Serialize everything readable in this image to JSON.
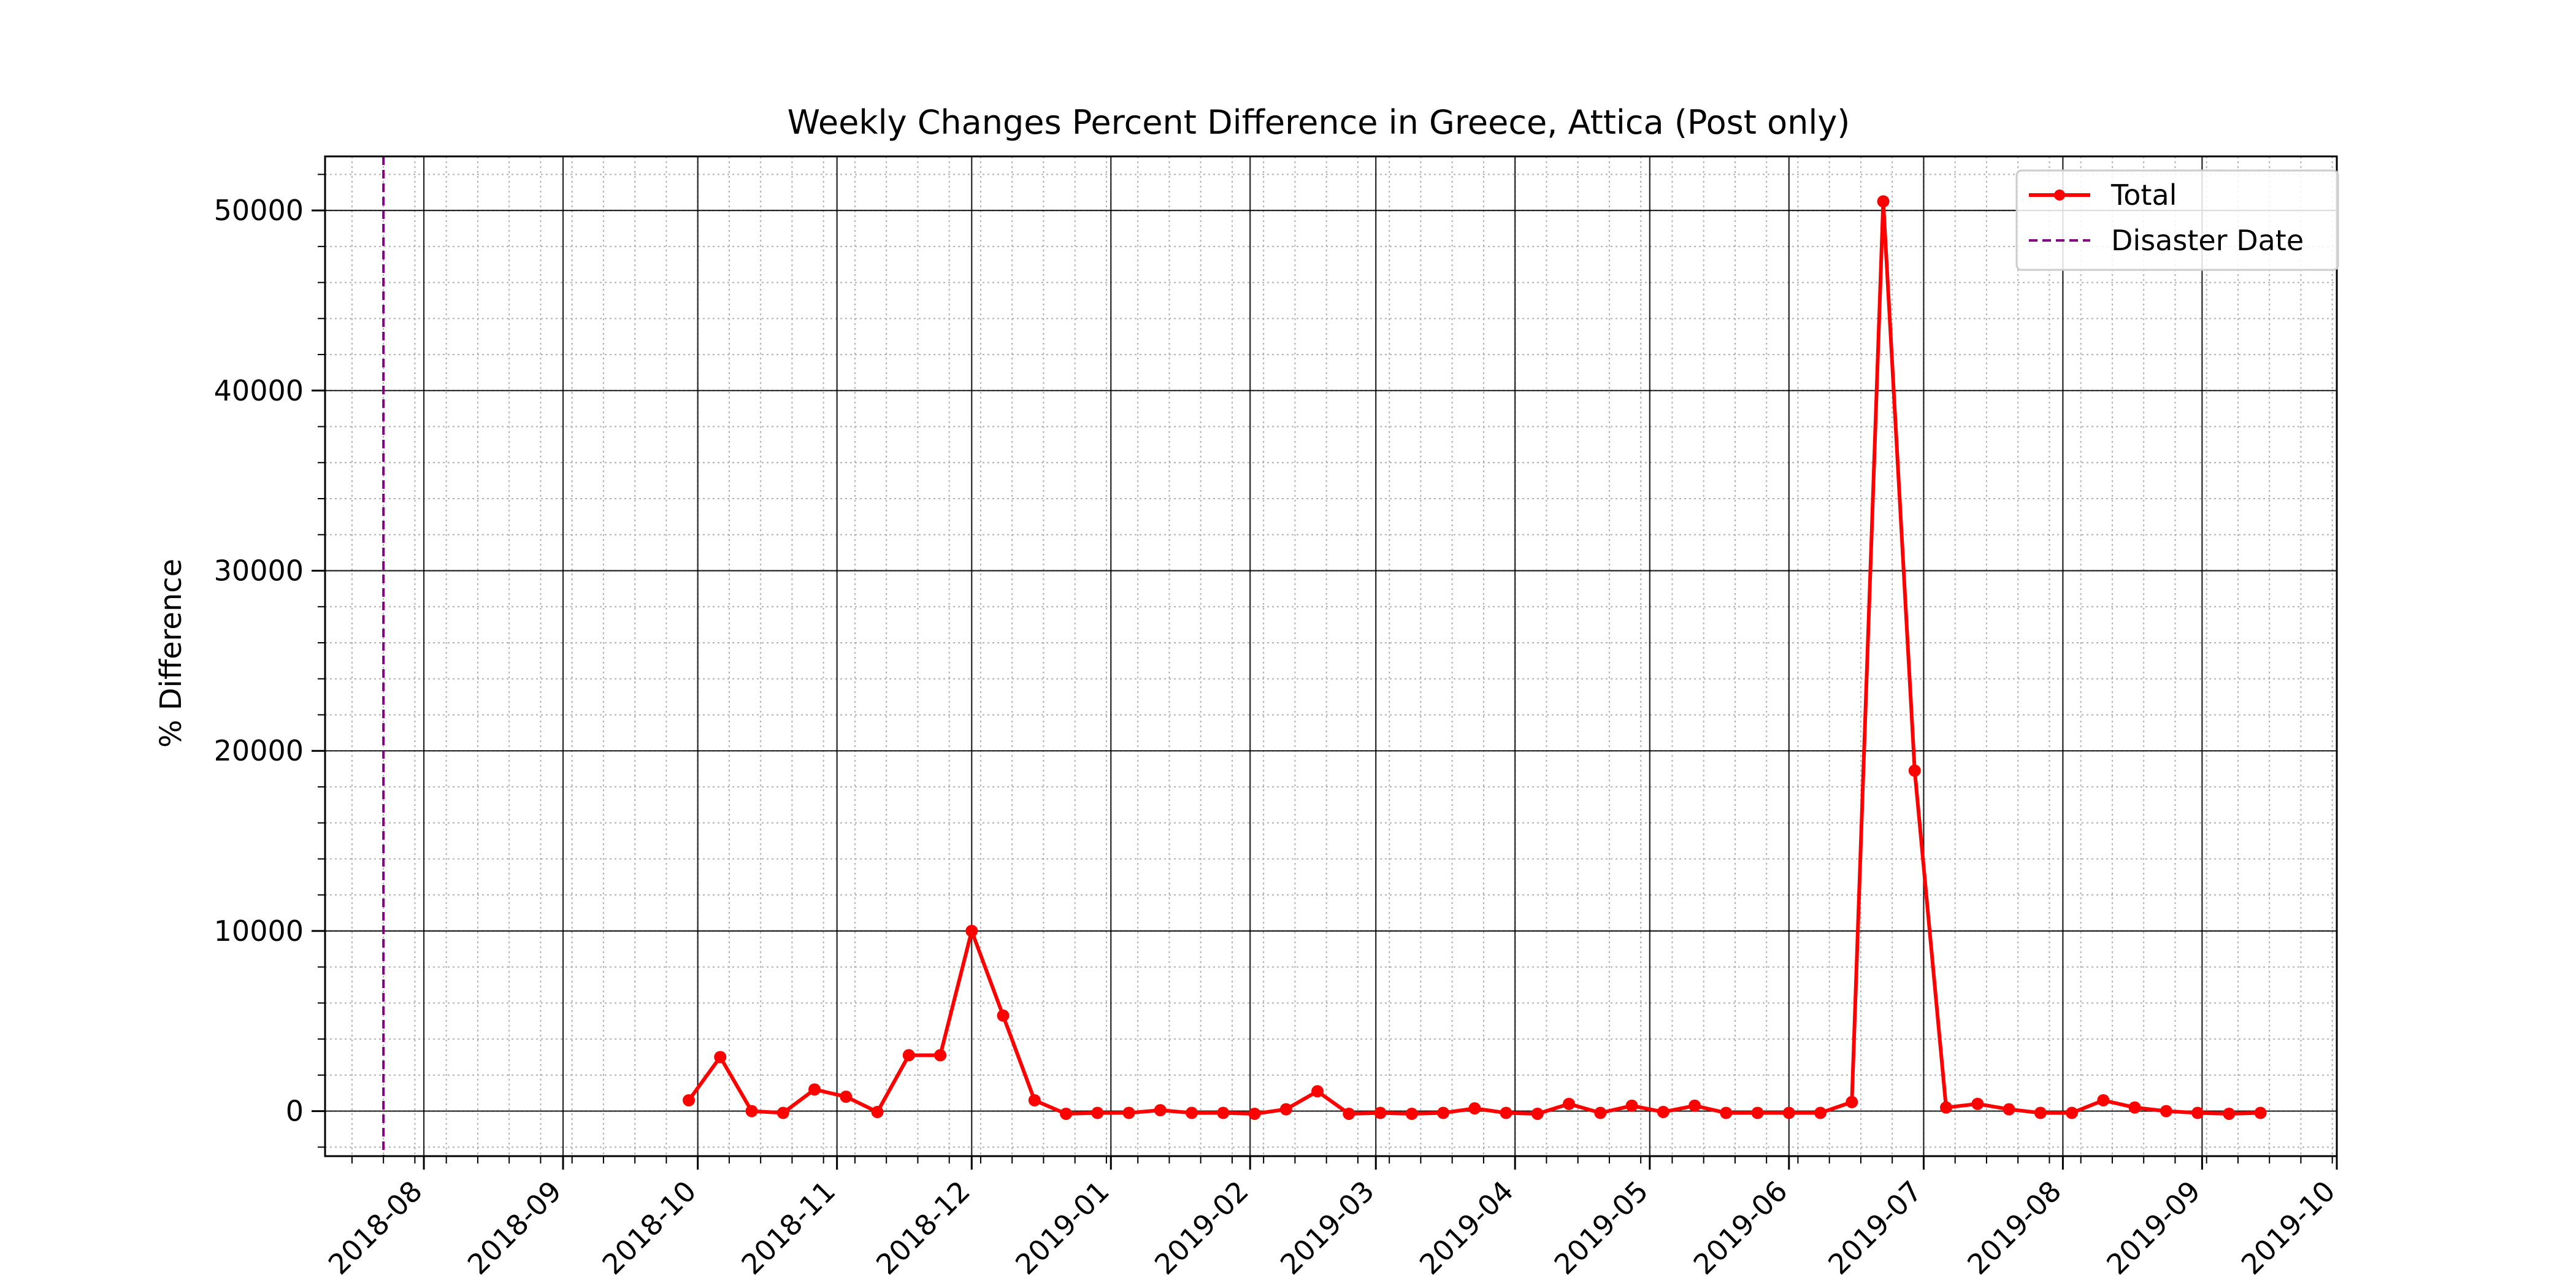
{
  "chart_data": {
    "type": "line",
    "title": "Weekly Changes Percent Difference in Greece, Attica (Post only)",
    "xlabel": "",
    "ylabel": "% Difference",
    "x_axis_type": "date",
    "xlim": [
      "2018-07-10",
      "2019-10-01"
    ],
    "ylim": [
      -2500,
      53000
    ],
    "x_ticks": [
      "2018-08",
      "2018-09",
      "2018-10",
      "2018-11",
      "2018-12",
      "2019-01",
      "2019-02",
      "2019-03",
      "2019-04",
      "2019-05",
      "2019-06",
      "2019-07",
      "2019-08",
      "2019-09",
      "2019-10"
    ],
    "y_ticks": [
      0,
      10000,
      20000,
      30000,
      40000,
      50000
    ],
    "grid": {
      "major": "on",
      "minor": "dotted"
    },
    "legend": {
      "placement": "top-right"
    },
    "series": [
      {
        "name": "Total",
        "color": "#ff0000",
        "marker": "circle",
        "x": [
          "2018-09-29",
          "2018-10-06",
          "2018-10-13",
          "2018-10-20",
          "2018-10-27",
          "2018-11-03",
          "2018-11-10",
          "2018-11-17",
          "2018-11-24",
          "2018-12-01",
          "2018-12-08",
          "2018-12-15",
          "2018-12-22",
          "2018-12-29",
          "2019-01-05",
          "2019-01-12",
          "2019-01-19",
          "2019-01-26",
          "2019-02-02",
          "2019-02-09",
          "2019-02-16",
          "2019-02-23",
          "2019-03-02",
          "2019-03-09",
          "2019-03-16",
          "2019-03-23",
          "2019-03-30",
          "2019-04-06",
          "2019-04-13",
          "2019-04-20",
          "2019-04-27",
          "2019-05-04",
          "2019-05-11",
          "2019-05-18",
          "2019-05-25",
          "2019-06-01",
          "2019-06-08",
          "2019-06-15",
          "2019-06-22",
          "2019-06-29",
          "2019-07-06",
          "2019-07-13",
          "2019-07-20",
          "2019-07-27",
          "2019-08-03",
          "2019-08-10",
          "2019-08-17",
          "2019-08-24",
          "2019-08-31",
          "2019-09-07",
          "2019-09-14"
        ],
        "y": [
          600,
          3000,
          0,
          -100,
          1200,
          800,
          -50,
          3100,
          3100,
          10000,
          5300,
          600,
          -150,
          -100,
          -100,
          50,
          -100,
          -100,
          -150,
          100,
          1100,
          -150,
          -100,
          -150,
          -100,
          150,
          -100,
          -150,
          400,
          -100,
          300,
          -50,
          300,
          -100,
          -100,
          -100,
          -100,
          500,
          50500,
          18900,
          200,
          400,
          100,
          -100,
          -100,
          600,
          200,
          0,
          -100,
          -150,
          -100
        ]
      },
      {
        "name": "Disaster Date",
        "color": "#800080",
        "style": "dashed",
        "x": "2018-07-23"
      }
    ]
  }
}
